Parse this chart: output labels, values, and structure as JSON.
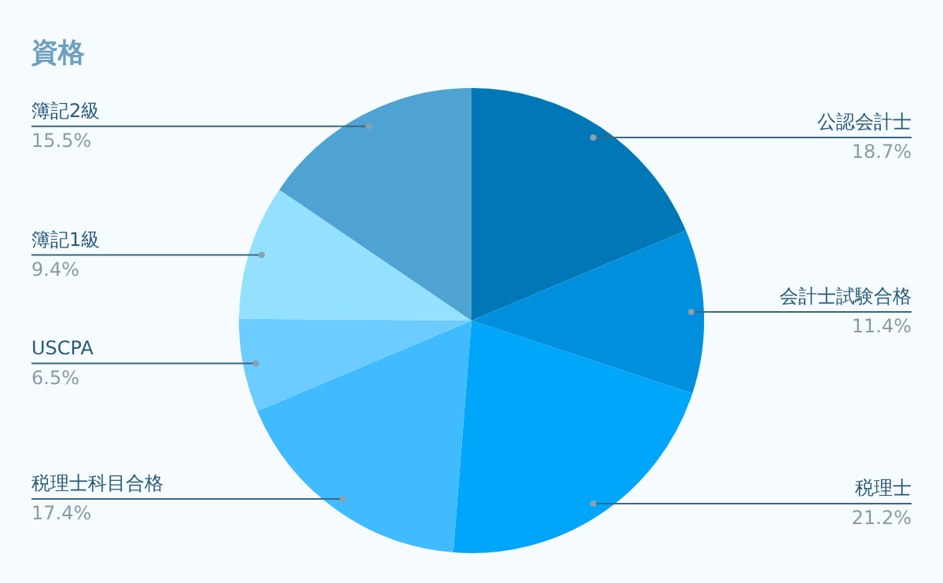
{
  "chart_data": {
    "type": "pie",
    "title": "資格",
    "categories": [
      "公認会計士",
      "会計士試験合格",
      "税理士",
      "税理士科目合格",
      "USCPA",
      "簿記1級",
      "簿記2級"
    ],
    "values": [
      18.7,
      11.4,
      21.2,
      17.4,
      6.5,
      9.4,
      15.5
    ],
    "value_labels": [
      "18.7%",
      "11.4%",
      "21.2%",
      "17.4%",
      "6.5%",
      "9.4%",
      "15.5%"
    ],
    "colors": [
      "#0077b6",
      "#008fdc",
      "#00a6fa",
      "#40bbff",
      "#6ccbff",
      "#94e0ff",
      "#4fa3d2"
    ],
    "legend": false
  }
}
